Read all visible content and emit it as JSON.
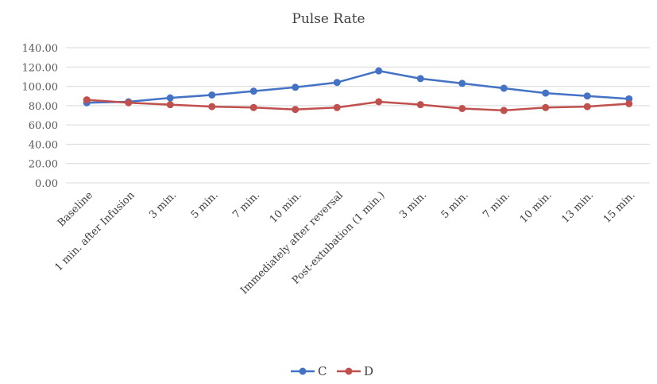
{
  "chart_data": {
    "type": "line",
    "title": "Pulse Rate",
    "xlabel": "",
    "ylabel": "",
    "ylim": [
      0,
      140
    ],
    "yticks": [
      "0.00",
      "20.00",
      "40.00",
      "60.00",
      "80.00",
      "100.00",
      "120.00",
      "140.00"
    ],
    "grid": true,
    "legend_position": "bottom",
    "categories": [
      "Baseline",
      "1 min. after Infusion",
      "3 min.",
      "5 min.",
      "7 min.",
      "10 min.",
      "Immediately after reversal",
      "Post-extubation (1 min.)",
      "3 min.",
      "5 min.",
      "7 min.",
      "10 min.",
      "13 min.",
      "15 min."
    ],
    "series": [
      {
        "name": "C",
        "color": "#4472c4",
        "values": [
          83,
          84,
          88,
          91,
          95,
          99,
          104,
          116,
          108,
          103,
          98,
          93,
          90,
          87
        ]
      },
      {
        "name": "D",
        "color": "#c0504d",
        "values": [
          86,
          83,
          81,
          79,
          78,
          76,
          78,
          84,
          81,
          77,
          75,
          78,
          79,
          82
        ]
      }
    ]
  }
}
